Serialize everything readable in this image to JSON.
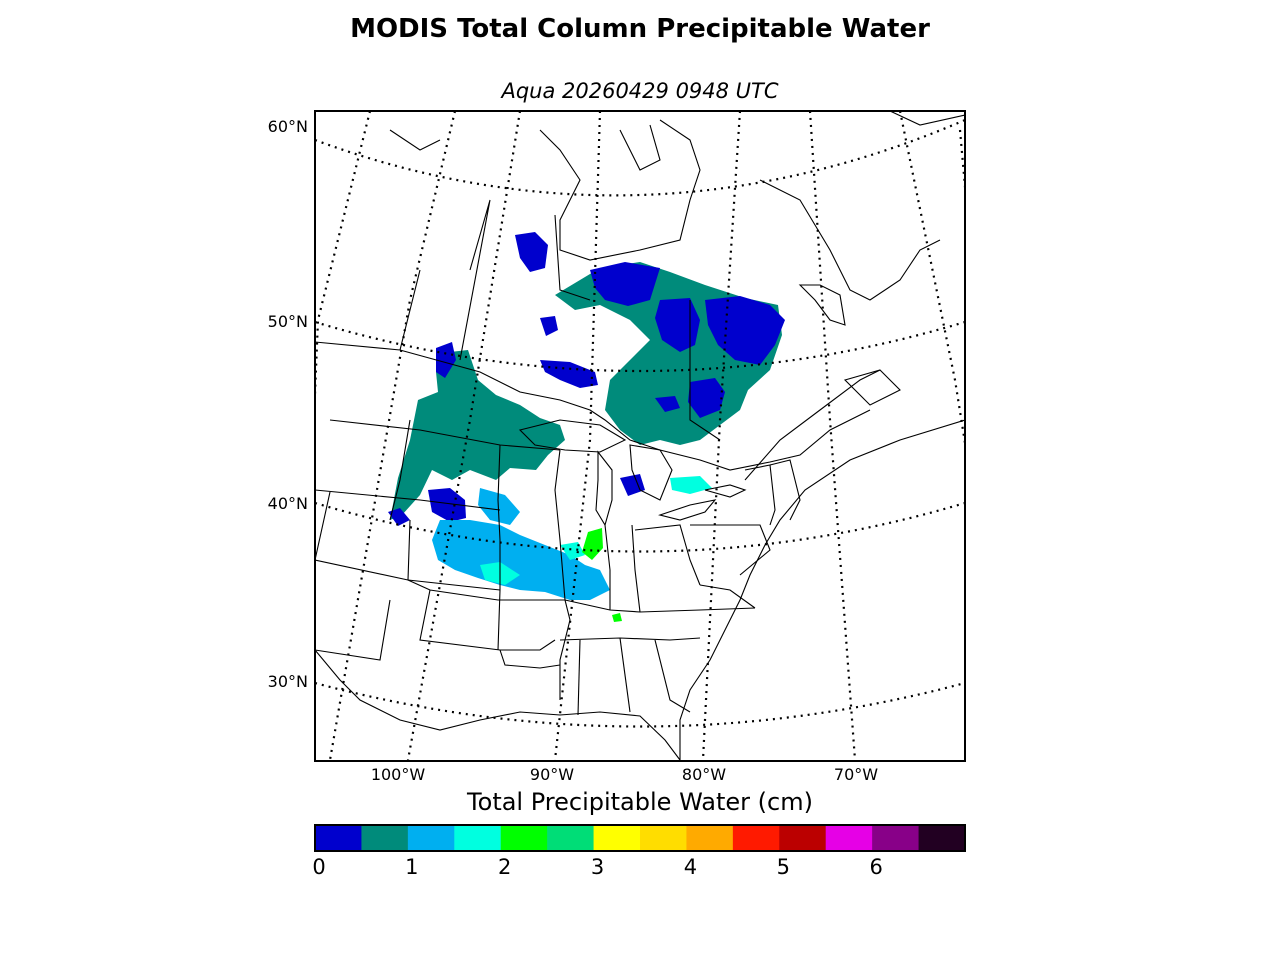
{
  "title": "MODIS Total Column Precipitable Water",
  "subtitle": "Aqua 20260429 0948 UTC",
  "lat_labels": [
    "60°N",
    "50°N",
    "40°N",
    "30°N"
  ],
  "lon_labels": [
    "100°W",
    "90°W",
    "80°W",
    "70°W"
  ],
  "colorbar": {
    "title": "Total Precipitable Water (cm)",
    "ticks": [
      "0",
      "1",
      "2",
      "3",
      "4",
      "5",
      "6"
    ],
    "range": [
      0,
      7
    ],
    "colors": [
      "#0000cd",
      "#008b7b",
      "#00aff0",
      "#00ffe0",
      "#00ff00",
      "#00dd77",
      "#ffff00",
      "#ffdd00",
      "#ffaa00",
      "#ff1a00",
      "#bb0000",
      "#e600e6",
      "#880088",
      "#220022"
    ]
  },
  "map": {
    "projection": "lambert-conformal",
    "background": "#ffffff",
    "coastline_color": "#000000",
    "graticule_style": "dotted"
  }
}
